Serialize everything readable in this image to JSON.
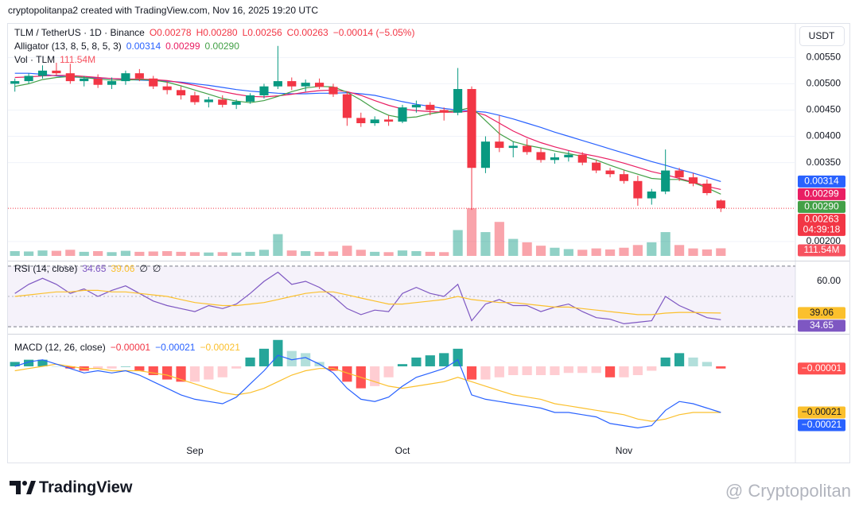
{
  "header": {
    "text": "cryptopolitanpa2 created with TradingView.com, Nov 16, 2025 19:20 UTC"
  },
  "currency": "USDT",
  "footer": {
    "brand": "TradingView",
    "watermark": "@ Cryptopolitan"
  },
  "chart_data": [
    {
      "type": "candlestick",
      "legend": [
        [
          {
            "text": "TLM / TetherUS · 1D · Binance",
            "color": "#131722"
          },
          {
            "text": "O0.00278",
            "color": "#f23645"
          },
          {
            "text": "H0.00280",
            "color": "#f23645"
          },
          {
            "text": "L0.00256",
            "color": "#f23645"
          },
          {
            "text": "C0.00263",
            "color": "#f23645"
          },
          {
            "text": "−0.00014 (−5.05%)",
            "color": "#f23645"
          }
        ],
        [
          {
            "text": "Alligator (13, 8, 5, 8, 5, 3)",
            "color": "#131722"
          },
          {
            "text": "0.00314",
            "color": "#2962ff"
          },
          {
            "text": "0.00299",
            "color": "#e91e63"
          },
          {
            "text": "0.00290",
            "color": "#43a047"
          }
        ],
        [
          {
            "text": "Vol · TLM",
            "color": "#131722"
          },
          {
            "text": "111.54M",
            "color": "#f7525f"
          }
        ]
      ],
      "categories": [
        null,
        null,
        null,
        null,
        null,
        null,
        null,
        null,
        null,
        null,
        null,
        null,
        null,
        "Sep",
        null,
        null,
        null,
        null,
        null,
        null,
        null,
        null,
        null,
        null,
        null,
        null,
        null,
        null,
        "Oct",
        null,
        null,
        null,
        null,
        null,
        null,
        null,
        null,
        null,
        null,
        null,
        null,
        null,
        null,
        null,
        "Nov",
        null,
        null,
        null,
        null,
        null,
        null,
        null
      ],
      "open": [
        0.005,
        0.00505,
        0.00515,
        0.00525,
        0.0052,
        0.00505,
        0.0051,
        0.00498,
        0.00505,
        0.0052,
        0.0051,
        0.00495,
        0.00488,
        0.00478,
        0.00465,
        0.0047,
        0.0046,
        0.00466,
        0.00478,
        0.00495,
        0.00505,
        0.00495,
        0.00502,
        0.00494,
        0.0048,
        0.00435,
        0.00425,
        0.00432,
        0.00428,
        0.00455,
        0.0046,
        0.0045,
        0.00445,
        0.0049,
        0.0034,
        0.0039,
        0.00378,
        0.00382,
        0.0037,
        0.00355,
        0.0036,
        0.00365,
        0.0035,
        0.00335,
        0.00328,
        0.00315,
        0.00282,
        0.00295,
        0.00335,
        0.00322,
        0.0031,
        0.00278
      ],
      "high": [
        0.0051,
        0.0052,
        0.00535,
        0.0054,
        0.00538,
        0.00515,
        0.00518,
        0.00512,
        0.00525,
        0.00528,
        0.00515,
        0.00505,
        0.00495,
        0.00485,
        0.00475,
        0.00478,
        0.0047,
        0.00482,
        0.005,
        0.00572,
        0.00512,
        0.00508,
        0.0051,
        0.005,
        0.00485,
        0.00445,
        0.00438,
        0.0044,
        0.0046,
        0.00468,
        0.00465,
        0.00455,
        0.0053,
        0.00495,
        0.004,
        0.0044,
        0.0039,
        0.00395,
        0.00378,
        0.00368,
        0.00372,
        0.0037,
        0.00355,
        0.0034,
        0.00335,
        0.00325,
        0.003,
        0.00375,
        0.0034,
        0.0033,
        0.00318,
        0.0028
      ],
      "low": [
        0.00485,
        0.005,
        0.0051,
        0.00515,
        0.005,
        0.00495,
        0.00492,
        0.0049,
        0.00498,
        0.00505,
        0.0049,
        0.0048,
        0.0047,
        0.0046,
        0.00455,
        0.00455,
        0.00452,
        0.00462,
        0.00472,
        0.0049,
        0.00488,
        0.00485,
        0.0049,
        0.00475,
        0.0042,
        0.00418,
        0.0042,
        0.0042,
        0.00425,
        0.00445,
        0.0044,
        0.0043,
        0.0044,
        0.0026,
        0.0033,
        0.0037,
        0.0036,
        0.00365,
        0.0035,
        0.00348,
        0.00352,
        0.00345,
        0.0033,
        0.00322,
        0.0031,
        0.00268,
        0.0027,
        0.0029,
        0.00315,
        0.00305,
        0.00288,
        0.00256
      ],
      "close": [
        0.00505,
        0.00515,
        0.00525,
        0.0052,
        0.00505,
        0.0051,
        0.00498,
        0.00505,
        0.0052,
        0.0051,
        0.00495,
        0.00488,
        0.00478,
        0.00465,
        0.0047,
        0.0046,
        0.00466,
        0.00478,
        0.00495,
        0.00505,
        0.00495,
        0.00502,
        0.00494,
        0.0048,
        0.00435,
        0.00425,
        0.00432,
        0.00428,
        0.00455,
        0.0046,
        0.0045,
        0.00445,
        0.0049,
        0.0034,
        0.0039,
        0.00378,
        0.00382,
        0.0037,
        0.00355,
        0.0036,
        0.00365,
        0.0035,
        0.00335,
        0.00328,
        0.00315,
        0.00282,
        0.00295,
        0.00335,
        0.00322,
        0.0031,
        0.00292,
        0.00263
      ],
      "colors": {
        "up": "#089981",
        "down": "#f23645"
      },
      "last_price_label": "0.00263",
      "countdown": "04:39:18",
      "ylim": [
        0.00168,
        0.00614
      ],
      "yticks": [
        {
          "value": 0.002,
          "label": "0.00200"
        },
        {
          "value": 0.0035,
          "label": "0.00350"
        },
        {
          "value": 0.004,
          "label": "0.00400"
        },
        {
          "value": 0.0045,
          "label": "0.00450"
        },
        {
          "value": 0.005,
          "label": "0.00500"
        },
        {
          "value": 0.0055,
          "label": "0.00550"
        }
      ],
      "grid": true,
      "series": [
        {
          "name": "Jaw",
          "color": "#2962ff",
          "last_label": "0.00314",
          "values": [
            0.0052,
            0.0052,
            0.00518,
            0.00515,
            0.00513,
            0.00512,
            0.00511,
            0.0051,
            0.00508,
            0.00507,
            0.00506,
            0.00505,
            0.00503,
            0.005,
            0.00497,
            0.00493,
            0.00489,
            0.00486,
            0.00484,
            0.00482,
            0.00481,
            0.00481,
            0.00482,
            0.00482,
            0.00483,
            0.00481,
            0.00478,
            0.00472,
            0.00466,
            0.00461,
            0.00457,
            0.00453,
            0.0045,
            0.00448,
            0.00446,
            0.0044,
            0.00433,
            0.00425,
            0.00417,
            0.00408,
            0.004,
            0.00392,
            0.00384,
            0.00376,
            0.00368,
            0.0036,
            0.00352,
            0.00345,
            0.00337,
            0.0033,
            0.00322,
            0.00314
          ]
        },
        {
          "name": "Teeth",
          "color": "#e91e63",
          "last_label": "0.00299",
          "values": [
            0.00512,
            0.00513,
            0.00515,
            0.00516,
            0.00516,
            0.00514,
            0.00512,
            0.0051,
            0.00509,
            0.00509,
            0.00508,
            0.00506,
            0.00502,
            0.00497,
            0.00491,
            0.00485,
            0.0048,
            0.00476,
            0.00475,
            0.00477,
            0.0048,
            0.00484,
            0.00487,
            0.00488,
            0.00485,
            0.00478,
            0.00468,
            0.00459,
            0.00452,
            0.00449,
            0.00447,
            0.00446,
            0.00446,
            0.00448,
            0.0044,
            0.00425,
            0.0041,
            0.00398,
            0.00388,
            0.0038,
            0.00373,
            0.00367,
            0.00362,
            0.00356,
            0.00349,
            0.00341,
            0.00333,
            0.00327,
            0.0032,
            0.00313,
            0.00305,
            0.00299
          ]
        },
        {
          "name": "Lips",
          "color": "#43a047",
          "last_label": "0.00290",
          "values": [
            0.00495,
            0.005,
            0.00508,
            0.00512,
            0.00514,
            0.00512,
            0.00509,
            0.00507,
            0.00507,
            0.00508,
            0.00507,
            0.00503,
            0.00496,
            0.00488,
            0.0048,
            0.00472,
            0.00467,
            0.00464,
            0.00468,
            0.00476,
            0.00485,
            0.00492,
            0.00495,
            0.00494,
            0.00484,
            0.00469,
            0.00452,
            0.0044,
            0.00435,
            0.00437,
            0.00443,
            0.00447,
            0.00449,
            0.00455,
            0.0043,
            0.00405,
            0.0039,
            0.00383,
            0.00378,
            0.00372,
            0.00367,
            0.00362,
            0.00355,
            0.00345,
            0.00336,
            0.00328,
            0.0032,
            0.00318,
            0.00318,
            0.00312,
            0.00302,
            0.0029
          ]
        }
      ],
      "volume": {
        "ylim": [
          0,
          900
        ],
        "last_label": "111.54M",
        "values": [
          70,
          65,
          80,
          75,
          90,
          60,
          70,
          55,
          75,
          60,
          65,
          70,
          60,
          55,
          50,
          55,
          50,
          60,
          90,
          320,
          80,
          70,
          60,
          65,
          150,
          90,
          60,
          55,
          80,
          70,
          60,
          55,
          380,
          700,
          350,
          500,
          250,
          200,
          150,
          120,
          100,
          90,
          110,
          95,
          120,
          160,
          200,
          350,
          160,
          110,
          95,
          111.54
        ]
      }
    },
    {
      "type": "line",
      "legend": [
        [
          {
            "text": "RSI (14, close)",
            "color": "#131722"
          },
          {
            "text": "34.65",
            "color": "#7e57c2"
          },
          {
            "text": "39.06",
            "color": "#fbc02d"
          },
          {
            "text": "∅",
            "color": "#131722"
          },
          {
            "text": "∅",
            "color": "#131722"
          }
        ]
      ],
      "ylim": [
        28,
        71
      ],
      "yticks": [
        {
          "value": 60,
          "label": "60.00"
        }
      ],
      "bands": [
        70,
        30
      ],
      "midline": 50,
      "series": [
        {
          "name": "RSI",
          "color": "#7e57c2",
          "last_label": "34.65",
          "values": [
            52,
            58,
            62,
            58,
            52,
            55,
            50,
            54,
            57,
            52,
            47,
            44,
            42,
            40,
            44,
            42,
            45,
            52,
            60,
            66,
            58,
            60,
            56,
            50,
            42,
            38,
            41,
            40,
            52,
            56,
            52,
            50,
            58,
            34,
            45,
            48,
            44,
            44,
            40,
            43,
            45,
            40,
            36,
            35,
            32,
            33,
            34,
            50,
            44,
            40,
            36,
            34.65
          ]
        },
        {
          "name": "RSI-based MA",
          "color": "#fbc02d",
          "last_label": "39.06",
          "values": [
            50,
            51,
            52,
            53,
            53,
            54,
            54,
            53,
            53,
            52,
            51,
            50,
            48,
            46,
            45,
            44,
            44,
            45,
            46,
            48,
            50,
            52,
            53,
            53,
            51,
            49,
            47,
            45,
            45,
            46,
            47,
            48,
            50,
            48,
            47,
            46,
            46,
            45,
            44,
            43,
            43,
            42,
            41,
            40,
            39,
            38,
            38,
            39,
            39.5,
            39.5,
            39.2,
            39.06
          ]
        }
      ]
    },
    {
      "type": "macd",
      "legend": [
        [
          {
            "text": "MACD (12, 26, close)",
            "color": "#131722"
          },
          {
            "text": "−0.00001",
            "color": "#f23645"
          },
          {
            "text": "−0.00021",
            "color": "#2962ff"
          },
          {
            "text": "−0.00021",
            "color": "#fbc02d"
          }
        ]
      ],
      "ylim": [
        -0.00034,
        0.00013
      ],
      "histogram": {
        "last_label": "−0.00001",
        "color": "#ff5252",
        "values": [
          2e-05,
          3e-05,
          3e-05,
          0,
          -1e-05,
          -2e-05,
          -1e-05,
          -1e-05,
          0,
          -2e-05,
          -4e-05,
          -6e-05,
          -7e-05,
          -7e-05,
          -6e-05,
          -5e-05,
          -1e-05,
          4e-05,
          8e-05,
          0.00012,
          7e-05,
          6e-05,
          2e-05,
          -2e-05,
          -7e-05,
          -0.0001,
          -9e-05,
          -5e-05,
          1e-05,
          4e-05,
          5e-05,
          6e-05,
          8e-05,
          -6e-05,
          -6e-05,
          -5e-05,
          -4e-05,
          -4e-05,
          -4e-05,
          -4e-05,
          -3e-05,
          -3e-05,
          -3e-05,
          -5e-05,
          -5e-05,
          -4e-05,
          -2e-05,
          4e-05,
          6e-05,
          4e-05,
          2e-05,
          -1e-05
        ]
      },
      "series": [
        {
          "name": "MACD",
          "color": "#2962ff",
          "last_label": "−0.00021",
          "values": [
            0,
            2e-05,
            3e-05,
            1e-05,
            -1e-05,
            -3e-05,
            -2e-05,
            -3e-05,
            -2e-05,
            -4e-05,
            -7e-05,
            -0.0001,
            -0.00013,
            -0.00015,
            -0.00016,
            -0.00017,
            -0.00014,
            -8e-05,
            -2e-05,
            5e-05,
            3e-05,
            4e-05,
            1e-05,
            -3e-05,
            -0.0001,
            -0.00015,
            -0.00016,
            -0.00014,
            -9e-05,
            -5e-05,
            -3e-05,
            -1e-05,
            3e-05,
            -0.00013,
            -0.00015,
            -0.00016,
            -0.00017,
            -0.00018,
            -0.00019,
            -0.00021,
            -0.00021,
            -0.00022,
            -0.00023,
            -0.00026,
            -0.00027,
            -0.00028,
            -0.00027,
            -0.0002,
            -0.00016,
            -0.00017,
            -0.00019,
            -0.00021
          ]
        },
        {
          "name": "Signal",
          "color": "#fbc02d",
          "last_label": "−0.00021",
          "values": [
            -2e-05,
            -1e-05,
            0,
            1e-05,
            0,
            -1e-05,
            -1e-05,
            -2e-05,
            -2e-05,
            -2e-05,
            -3e-05,
            -4e-05,
            -6e-05,
            -8e-05,
            -0.0001,
            -0.00012,
            -0.00013,
            -0.00012,
            -0.0001,
            -7e-05,
            -4e-05,
            -2e-05,
            -1e-05,
            -1e-05,
            -3e-05,
            -5e-05,
            -7e-05,
            -9e-05,
            -0.0001,
            -9e-05,
            -8e-05,
            -7e-05,
            -5e-05,
            -7e-05,
            -9e-05,
            -0.00011,
            -0.00013,
            -0.00014,
            -0.00015,
            -0.00017,
            -0.00018,
            -0.00019,
            -0.0002,
            -0.00021,
            -0.00022,
            -0.00024,
            -0.00025,
            -0.00024,
            -0.00022,
            -0.00021,
            -0.00021,
            -0.00021
          ]
        }
      ]
    }
  ]
}
